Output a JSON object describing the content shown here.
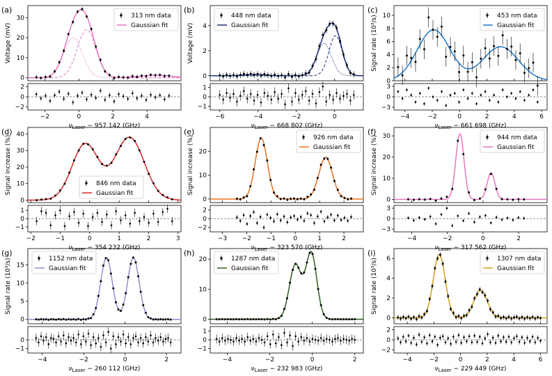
{
  "chart_data": [
    {
      "type": "scatter",
      "panel": "(a)",
      "legend": {
        "data_label": "313 nm data",
        "fit_label": "Gaussian fit",
        "placement": "top-right"
      },
      "fit_color": "#e377c2",
      "x_axis": {
        "label_sym": "ν",
        "label_sub": "Laser",
        "label_rest": " − 957 142 (GHz)",
        "range": [
          -3.0,
          6.0
        ],
        "ticks": [
          -2,
          0,
          2,
          4
        ]
      },
      "main": {
        "ylabel": "Voltage (mV)",
        "ylim": [
          -1.5,
          36
        ],
        "yticks": [
          0,
          10,
          20,
          30
        ]
      },
      "residual": {
        "ylim": [
          -2.6,
          2.6
        ],
        "yticks": [
          -2,
          0,
          2
        ],
        "values": [
          0.5,
          -0.3,
          0.2,
          -0.8,
          0.3,
          1.0,
          -0.4,
          0.6,
          -1.1,
          0.2,
          0.8,
          -0.5,
          0.4,
          -0.2,
          1.2,
          -0.6,
          0.3,
          -0.9,
          0.5,
          0.1,
          -0.4,
          0.7,
          -0.3,
          0.2,
          -0.6,
          0.4,
          -0.1,
          0.3,
          -0.5,
          0.2
        ]
      },
      "data_x": {
        "start": -2.5,
        "end": 5.3,
        "n": 30
      },
      "data_err": 0.9,
      "fit": [
        {
          "A": 20,
          "mu": -0.35,
          "sigma": 0.55,
          "style": "dotted"
        },
        {
          "A": 24,
          "mu": 0.45,
          "sigma": 0.55,
          "style": "dashed"
        },
        {
          "A": 1.3,
          "mu": 4.5,
          "sigma": 0.9,
          "style": "none"
        }
      ]
    },
    {
      "type": "scatter",
      "panel": "(b)",
      "legend": {
        "data_label": "448 nm data",
        "fit_label": "Gaussian fit",
        "placement": "top-left"
      },
      "fit_color": "#1f2f7a",
      "x_axis": {
        "label_sym": "ν",
        "label_sub": "Laser",
        "label_rest": " − 668 802 (GHz)",
        "range": [
          -6.5,
          1.5
        ],
        "ticks": [
          -6,
          -4,
          -2,
          0
        ]
      },
      "main": {
        "ylabel": "Voltage (mV)",
        "ylim": [
          -0.4,
          5.6
        ],
        "yticks": [
          0,
          2,
          4
        ]
      },
      "residual": {
        "ylim": [
          -1.4,
          1.4
        ],
        "yticks": [
          -1,
          0,
          1
        ],
        "values": [
          0.2,
          -0.3,
          0.4,
          -0.1,
          0.3,
          -0.5,
          0.1,
          0.6,
          -0.2,
          0.3,
          -0.4,
          0.2,
          -0.6,
          0.4,
          0.1,
          -0.3,
          0.5,
          -0.2,
          0.3,
          -0.8,
          0.9,
          -0.5,
          0.4,
          -0.3,
          0.2,
          0.6,
          -0.4,
          0.3,
          -0.7,
          0.5,
          1.1,
          -0.5,
          0.2,
          -0.3,
          0.4,
          -0.2,
          0.1,
          0.3,
          -0.4,
          0.2
        ]
      },
      "data_x": {
        "start": -6.0,
        "end": 1.0,
        "n": 40
      },
      "data_err": 0.25,
      "fit": [
        {
          "A": 2.6,
          "mu": -0.55,
          "sigma": 0.38,
          "style": "dotted"
        },
        {
          "A": 3.2,
          "mu": 0.05,
          "sigma": 0.35,
          "style": "dashed"
        },
        {
          "A": 0.12,
          "mu": -4.2,
          "sigma": 0.5,
          "style": "none"
        }
      ]
    },
    {
      "type": "scatter",
      "panel": "(c)",
      "legend": {
        "data_label": "453 nm data",
        "fit_label": "Gaussian fit",
        "placement": "top-right"
      },
      "fit_color": "#1f78c8",
      "x_axis": {
        "label_sym": "ν",
        "label_sub": "Laser",
        "label_rest": " − 661 698 (GHz)",
        "range": [
          -4.8,
          6.4
        ],
        "ticks": [
          -4,
          -2,
          0,
          2,
          4,
          6
        ]
      },
      "main": {
        "ylabel": "Signal rate (10³/s)",
        "ylim": [
          0,
          11.5
        ],
        "yticks": [
          0,
          2,
          4,
          6,
          8,
          10
        ]
      },
      "residual": {
        "ylim": [
          -3.8,
          3.8
        ],
        "yticks": [
          -3,
          0,
          3
        ],
        "values": [
          1.5,
          -0.5,
          2.0,
          0.5,
          -1.5,
          1.0,
          -2.0,
          2.5,
          0.0,
          -1.0,
          1.5,
          -2.5,
          0.5,
          1.0,
          -1.5,
          2.0,
          -0.5,
          1.0,
          -2.0,
          0.5,
          1.5,
          -1.0,
          0.5,
          -1.5,
          2.0,
          0.0,
          1.0,
          -0.5,
          1.5,
          -1.0,
          0.5,
          2.0,
          -1.5
        ]
      },
      "data_x": {
        "start": -4.5,
        "end": 5.7,
        "n": 33
      },
      "data_err": 1.5,
      "fit": [
        {
          "A": 7.8,
          "mu": -1.9,
          "sigma": 1.2,
          "style": "none"
        },
        {
          "A": 5.2,
          "mu": 3.0,
          "sigma": 1.3,
          "style": "none"
        }
      ]
    },
    {
      "type": "scatter",
      "panel": "(d)",
      "legend": {
        "data_label": "846 nm data",
        "fit_label": "Gaussian fit",
        "placement": "bottom-center"
      },
      "fit_color": "#d62728",
      "x_axis": {
        "label_sym": "ν",
        "label_sub": "Laser",
        "label_rest": " − 354 232 (GHz)",
        "range": [
          -2.1,
          3.1
        ],
        "ticks": [
          -2,
          -1,
          0,
          1,
          2,
          3
        ]
      },
      "main": {
        "ylabel": "Signal increase (%)",
        "ylim": [
          -1.5,
          44
        ],
        "yticks": [
          0,
          10,
          20,
          30,
          40
        ]
      },
      "residual": {
        "ylim": [
          -1.6,
          1.6
        ],
        "yticks": [
          -1,
          0,
          1
        ],
        "values": [
          -0.3,
          0.9,
          0.7,
          -0.8,
          0.4,
          1.0,
          -0.9,
          0.3,
          0.8,
          -0.5,
          0.6,
          -0.9,
          0.2,
          0.7,
          -0.4,
          0.5,
          -0.8,
          0.9,
          -0.2,
          0.4,
          -0.6,
          0.7,
          -0.3,
          0.2,
          -0.5,
          0.6,
          -0.4,
          0.8,
          1.2,
          -0.3
        ]
      },
      "data_x": {
        "start": -1.8,
        "end": 2.8,
        "n": 30
      },
      "data_err": 0.5,
      "fit": [
        {
          "A": 34,
          "mu": -0.15,
          "sigma": 0.45,
          "style": "none"
        },
        {
          "A": 38,
          "mu": 1.35,
          "sigma": 0.5,
          "style": "none"
        }
      ]
    },
    {
      "type": "scatter",
      "panel": "(e)",
      "legend": {
        "data_label": "926 nm data",
        "fit_label": "Gaussian fit",
        "placement": "top-right"
      },
      "fit_color": "#e8701e",
      "x_axis": {
        "label_sym": "ν",
        "label_sub": "Laser",
        "label_rest": " − 323 570 (GHz)",
        "range": [
          -3.5,
          2.8
        ],
        "ticks": [
          -3,
          -2,
          -1,
          0,
          1,
          2
        ]
      },
      "main": {
        "ylabel": "Signal increase (%)",
        "ylim": [
          -1.5,
          30
        ],
        "yticks": [
          0,
          10,
          20
        ]
      },
      "residual": {
        "ylim": [
          -3.0,
          3.0
        ],
        "yticks": [
          -2,
          0,
          2
        ],
        "values": [
          0.3,
          -0.5,
          0.8,
          -1.2,
          0.6,
          1.5,
          -1.0,
          0.4,
          -2.0,
          0.9,
          0.2,
          -0.6,
          1.0,
          -0.4,
          0.5,
          -0.8,
          0.3,
          0.6,
          -0.2,
          0.4,
          -0.5,
          1.2,
          0.8,
          -1.0,
          0.5,
          1.6,
          -0.6,
          0.3,
          0.9,
          -0.4,
          0.7,
          -0.3,
          0.2,
          -0.5,
          0.4
        ]
      },
      "data_x": {
        "start": -2.4,
        "end": 2.3,
        "n": 35
      },
      "data_err": 0.6,
      "fit": [
        {
          "A": 25.5,
          "mu": -1.4,
          "sigma": 0.25,
          "style": "none"
        },
        {
          "A": 17.5,
          "mu": 1.25,
          "sigma": 0.28,
          "style": "none"
        }
      ]
    },
    {
      "type": "scatter",
      "panel": "(f)",
      "legend": {
        "data_label": "944 nm data",
        "fit_label": "Gaussian fit",
        "placement": "top-right"
      },
      "fit_color": "#e377c2",
      "x_axis": {
        "label_sym": "ν",
        "label_sub": "Laser",
        "label_rest": " − 317 562 (GHz)",
        "range": [
          -5.0,
          3.6
        ],
        "ticks": [
          -4,
          -2,
          0,
          2
        ]
      },
      "main": {
        "ylabel": "Signal increase (%)",
        "ylim": [
          -1.5,
          34
        ],
        "yticks": [
          0,
          10,
          20,
          30
        ]
      },
      "residual": {
        "ylim": [
          -3.8,
          3.8
        ],
        "yticks": [
          -3,
          0,
          3
        ],
        "values": [
          0.2,
          -0.5,
          0.3,
          -0.2,
          0.6,
          -1.5,
          1.2,
          3.0,
          -2.0,
          0.8,
          -0.6,
          1.5,
          -1.0,
          0.5,
          0.9,
          -1.2,
          0.4,
          -0.3,
          0.2,
          -0.4,
          0.3,
          0.1
        ]
      },
      "data_x": {
        "start": -4.2,
        "end": 2.3,
        "n": 22
      },
      "data_err": 0.6,
      "fit": [
        {
          "A": 31,
          "mu": -1.3,
          "sigma": 0.23,
          "style": "none"
        },
        {
          "A": 12.5,
          "mu": 0.45,
          "sigma": 0.22,
          "style": "none"
        }
      ]
    },
    {
      "type": "scatter",
      "panel": "(g)",
      "legend": {
        "data_label": "1152 nm data",
        "fit_label": "Gaussian fit",
        "placement": "top-left"
      },
      "fit_color": "#8e8fd0",
      "x_axis": {
        "label_sym": "ν",
        "label_sub": "Laser",
        "label_rest": " − 260 112 (GHz)",
        "range": [
          -4.7,
          2.7
        ],
        "ticks": [
          -4,
          -2,
          0,
          2
        ]
      },
      "main": {
        "ylabel": "Signal rate (10³/s)",
        "ylim": [
          -1.2,
          19.5
        ],
        "yticks": [
          0,
          5,
          10,
          15
        ]
      },
      "residual": {
        "ylim": [
          -1.5,
          1.5
        ],
        "yticks": [
          -1,
          0
        ],
        "values": [
          0.2,
          -0.3,
          0.4,
          -0.1,
          0.3,
          -0.5,
          0.2,
          0.1,
          -0.3,
          0.4,
          -0.2,
          0.5,
          -0.4,
          0.3,
          -0.1,
          0.2,
          -0.3,
          0.6,
          -0.5,
          0.4,
          -0.2,
          0.7,
          -0.6,
          0.3,
          -0.4,
          0.2,
          -0.8,
          0.5,
          -0.3,
          0.9,
          -1.0,
          0.4,
          -0.5,
          0.3,
          -0.2,
          0.6,
          -0.4,
          0.3,
          -0.5,
          0.2,
          0.4,
          -0.3,
          0.2,
          -0.4,
          0.3,
          -0.2,
          0.5,
          -0.3,
          0.2,
          -0.1,
          0.3,
          -0.2,
          0.1,
          0.2,
          -0.3
        ]
      },
      "data_x": {
        "start": -4.3,
        "end": 2.2,
        "n": 55
      },
      "data_err": 0.3,
      "fit": [
        {
          "A": 17,
          "mu": -0.9,
          "sigma": 0.28,
          "style": "none"
        },
        {
          "A": 17,
          "mu": 0.4,
          "sigma": 0.28,
          "style": "none"
        }
      ]
    },
    {
      "type": "scatter",
      "panel": "(h)",
      "legend": {
        "data_label": "1287 nm data",
        "fit_label": "Gaussian fit",
        "placement": "top-left"
      },
      "fit_color": "#2e5e1e",
      "x_axis": {
        "label_sym": "ν",
        "label_sub": "Laser",
        "label_rest": " − 232 983 (GHz)",
        "range": [
          -4.8,
          2.4
        ],
        "ticks": [
          -4,
          -2,
          0,
          2
        ]
      },
      "main": {
        "ylabel": "",
        "ylim": [
          -1.5,
          23.5
        ],
        "yticks": [
          0,
          10,
          20
        ]
      },
      "residual": {
        "ylim": [
          -1.5,
          1.5
        ],
        "yticks": [
          -1,
          0,
          1
        ],
        "values": [
          0.1,
          -0.2,
          0.2,
          -0.1,
          0.1,
          0.0,
          -0.2,
          0.2,
          -0.1,
          0.1,
          -0.2,
          0.3,
          -0.1,
          0.1,
          -0.2,
          0.2,
          0.0,
          -0.3,
          0.4,
          -0.5,
          0.6,
          -0.4,
          0.3,
          -0.6,
          0.8,
          -0.3,
          0.5,
          -0.7,
          0.4,
          -0.2,
          0.3,
          -0.1,
          0.2,
          -0.2,
          0.1,
          0.0,
          -0.1,
          0.2,
          -0.1,
          0.1,
          0.0,
          -0.2,
          0.1,
          0.2,
          -0.1,
          0.1,
          0.0,
          -0.1,
          0.1,
          0.0
        ]
      },
      "data_x": {
        "start": -4.5,
        "end": 2.0,
        "n": 50
      },
      "data_err": 0.3,
      "fit": [
        {
          "A": 18,
          "mu": -0.8,
          "sigma": 0.28,
          "style": "none"
        },
        {
          "A": 22,
          "mu": -0.05,
          "sigma": 0.26,
          "style": "none"
        }
      ]
    },
    {
      "type": "scatter",
      "panel": "(i)",
      "legend": {
        "data_label": "1307 nm data",
        "fit_label": "Gaussian fit",
        "placement": "top-right"
      },
      "fit_color": "#d4a017",
      "x_axis": {
        "label_sym": "ν",
        "label_sub": "Laser",
        "label_rest": " − 229 449 (GHz)",
        "range": [
          -5.0,
          6.5
        ],
        "ticks": [
          -4,
          -2,
          0,
          2,
          4,
          6
        ]
      },
      "main": {
        "ylabel": "Signal rate (10³/s)",
        "ylim": [
          -0.6,
          7.0
        ],
        "yticks": [
          0,
          2,
          4,
          6
        ]
      },
      "residual": {
        "ylim": [
          -2.6,
          2.6
        ],
        "yticks": [
          -2,
          0,
          2
        ],
        "values": [
          0.3,
          -0.5,
          0.6,
          -0.3,
          0.8,
          -0.6,
          0.4,
          -0.9,
          1.0,
          -0.4,
          0.5,
          -0.7,
          0.9,
          -0.3,
          0.6,
          -1.0,
          0.4,
          0.7,
          -0.5,
          0.3,
          -0.8,
          0.6,
          -0.4,
          0.9,
          -0.6,
          0.5,
          -0.3,
          0.7,
          -0.5,
          0.8,
          -0.4,
          0.6,
          -0.7,
          0.3,
          1.1,
          -0.5,
          0.4,
          -0.6,
          0.8,
          -0.3,
          0.5,
          -0.4,
          0.6,
          -0.5,
          0.3,
          0.7,
          -0.4,
          0.5,
          -0.6,
          0.4,
          -0.3,
          0.6,
          -0.5,
          0.4,
          -0.2
        ]
      },
      "data_x": {
        "start": -4.7,
        "end": 6.0,
        "n": 55
      },
      "data_err": 0.25,
      "fit": [
        {
          "A": 6.4,
          "mu": -1.6,
          "sigma": 0.45,
          "style": "none"
        },
        {
          "A": 2.8,
          "mu": 1.5,
          "sigma": 0.5,
          "style": "none"
        }
      ]
    }
  ]
}
